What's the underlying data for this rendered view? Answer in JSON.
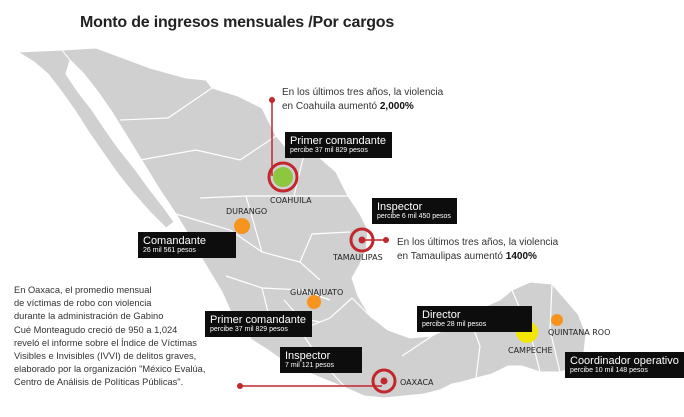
{
  "title": "Monto de ingresos mensuales /Por cargos",
  "colors": {
    "background": "#ffffff",
    "land": "#d0d0d0",
    "border": "#ffffff",
    "marker_green": "#8dc63f",
    "marker_orange": "#f7941d",
    "marker_yellow": "#f2e600",
    "marker_red": "#c1272d",
    "label_box": "#0d0d0d"
  },
  "states": {
    "coahuila": "COAHUILA",
    "durango": "DURANGO",
    "tamaulipas": "TAMAULIPAS",
    "guanajuato": "GUANAJUATO",
    "campeche": "CAMPECHE",
    "quintana_roo": "QUINTANA ROO",
    "oaxaca": "OAXACA"
  },
  "labels": {
    "coahuila": {
      "title": "Primer comandante",
      "detail": "percibe 37 mil 829 pesos"
    },
    "tamaulipas": {
      "title": "Inspector",
      "detail": "percibe 6 mil 450 pesos"
    },
    "durango": {
      "title": "Comandante",
      "detail": "26 mil 561 pesos"
    },
    "guanajuato": {
      "title": "Primer comandante",
      "detail": "percibe 37 mil 829 pesos"
    },
    "campeche": {
      "title": "Director",
      "detail": "percibe 28 mil pesos"
    },
    "oaxaca": {
      "title": "Inspector",
      "detail": "7 mil 121 pesos"
    },
    "quintana_roo": {
      "title": "Coordinador operativo",
      "detail": "percibe 10 mil 148 pesos"
    }
  },
  "notes": {
    "coahuila": {
      "line1": "En los últimos tres años, la violencia",
      "line2": "en Coahuila aumentó",
      "value": "2,000%"
    },
    "tamaulipas": {
      "line1": "En los últimos tres años, la violencia",
      "line2": "en Tamaulipas aumentó",
      "value": "1400%"
    }
  },
  "paragraph": [
    "En Oaxaca, el promedio mensual",
    "de víctimas de robo con violencia",
    "durante la administración de Gabino",
    "Cué Monteagudo creció de 950 a 1,024",
    "reveló el informe sobre el Índice de Víctimas",
    "Visibles e Invisibles (IVVI) de delitos graves,",
    "elaborado por la organización \"México Evalúa,",
    "Centro de Análisis de Políticas Públicas\"."
  ]
}
